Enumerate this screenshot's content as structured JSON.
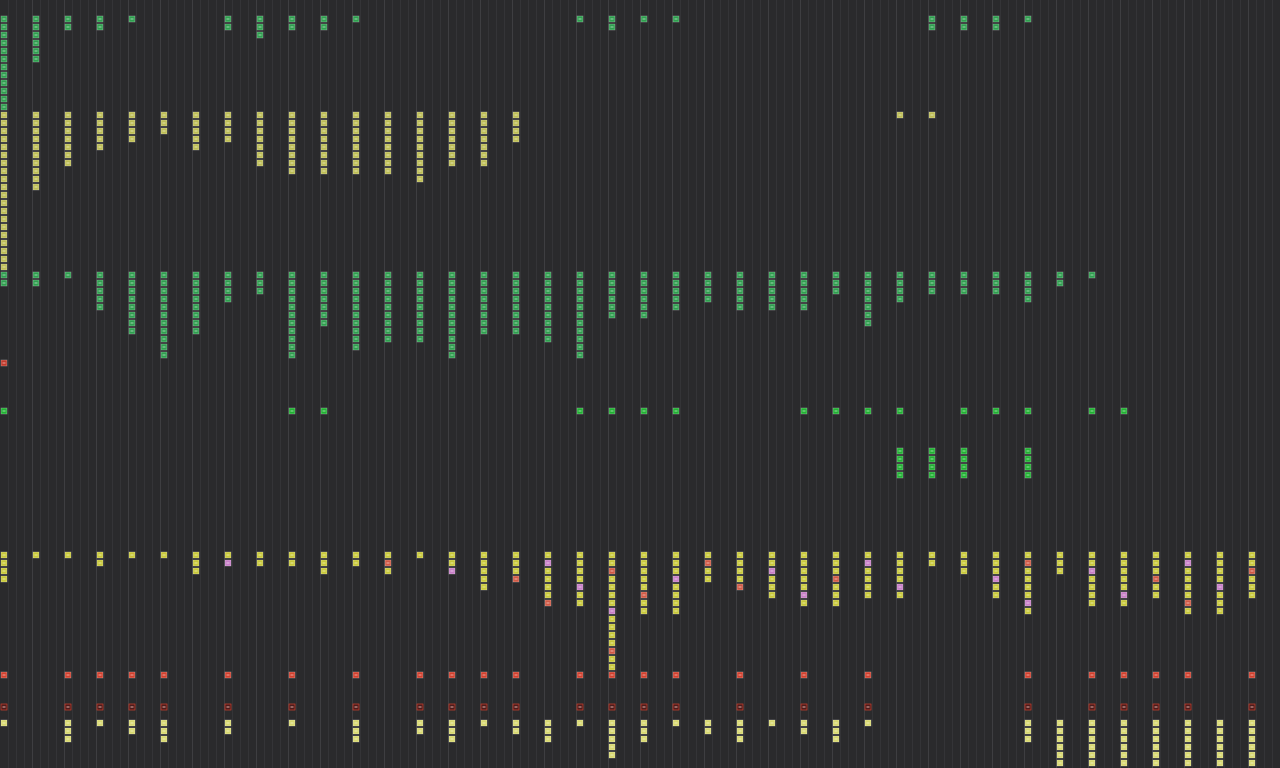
{
  "lanes": [
    {
      "color": "#2f9e4f"
    },
    {
      "color": "#bdbd55"
    },
    {
      "color": "#2f9e4f"
    },
    {
      "color": "#c0392b"
    },
    {
      "color": "#22b033"
    },
    {
      "color": "#22b033"
    },
    {
      "color": "#c8c83a"
    },
    {
      "color": "#d0402e"
    },
    {
      "color": "#4a1c1c"
    },
    {
      "color": "#d8d870"
    }
  ]
}
